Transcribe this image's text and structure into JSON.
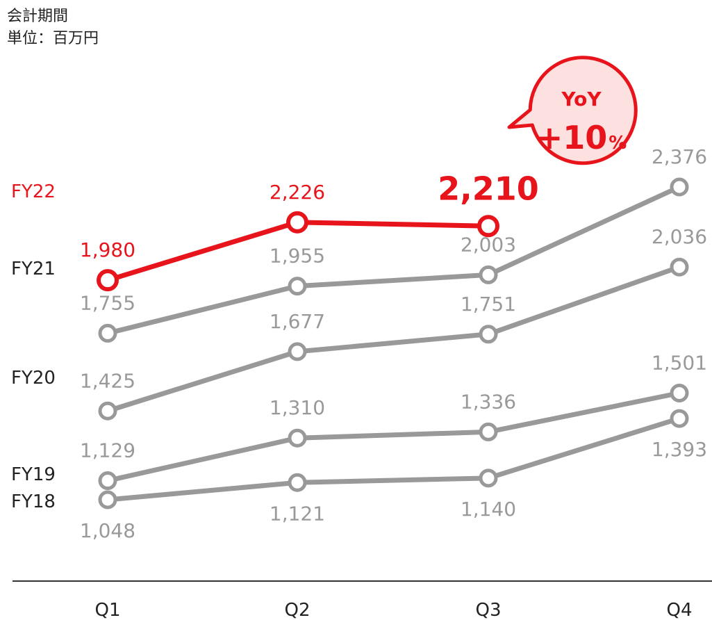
{
  "header": {
    "line1": "会計期間",
    "line2": "単位：百万円"
  },
  "colors": {
    "highlight": "#e8141c",
    "muted": "#999999",
    "axis": "#333333",
    "text": "#222222",
    "bubble_fill": "#fde0e0"
  },
  "callout": {
    "line1": "YoY",
    "line2": "+10",
    "suffix": "%"
  },
  "chart_data": {
    "type": "line",
    "categories": [
      "Q1",
      "Q2",
      "Q3",
      "Q4"
    ],
    "series": [
      {
        "name": "FY18",
        "values": [
          1048,
          1121,
          1140,
          1393
        ],
        "labels": [
          "1,048",
          "1,121",
          "1,140",
          "1,393"
        ]
      },
      {
        "name": "FY19",
        "values": [
          1129,
          1310,
          1336,
          1501
        ],
        "labels": [
          "1,129",
          "1,310",
          "1,336",
          "1,501"
        ]
      },
      {
        "name": "FY20",
        "values": [
          1425,
          1677,
          1751,
          2036
        ],
        "labels": [
          "1,425",
          "1,677",
          "1,751",
          "2,036"
        ]
      },
      {
        "name": "FY21",
        "values": [
          1755,
          1955,
          2003,
          2376
        ],
        "labels": [
          "1,755",
          "1,955",
          "2,003",
          "2,376"
        ]
      },
      {
        "name": "FY22",
        "values": [
          1980,
          2226,
          2210,
          null
        ],
        "labels": [
          "1,980",
          "2,226",
          "2,210",
          ""
        ],
        "highlight": true
      }
    ],
    "grid": false,
    "legend": "direct labels at left of each line"
  }
}
